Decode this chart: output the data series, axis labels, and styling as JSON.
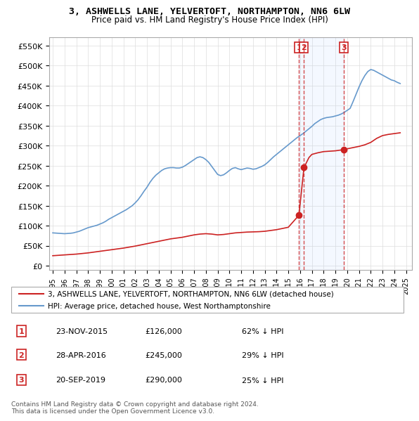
{
  "title": "3, ASHWELLS LANE, YELVERTOFT, NORTHAMPTON, NN6 6LW",
  "subtitle": "Price paid vs. HM Land Registry's House Price Index (HPI)",
  "ylabel_max": 550000,
  "yticks": [
    0,
    50000,
    100000,
    150000,
    200000,
    250000,
    300000,
    350000,
    400000,
    450000,
    500000,
    550000
  ],
  "ytick_labels": [
    "£0",
    "£50K",
    "£100K",
    "£150K",
    "£200K",
    "£250K",
    "£300K",
    "£350K",
    "£400K",
    "£450K",
    "£500K",
    "£550K"
  ],
  "xmin": 1995.0,
  "xmax": 2025.5,
  "transactions": [
    {
      "num": 1,
      "date_str": "23-NOV-2015",
      "date_x": 2015.9,
      "price": 126000,
      "label": "1"
    },
    {
      "num": 2,
      "date_str": "28-APR-2016",
      "date_x": 2016.33,
      "price": 245000,
      "label": "2"
    },
    {
      "num": 3,
      "date_str": "20-SEP-2019",
      "date_x": 2019.72,
      "price": 290000,
      "label": "3"
    }
  ],
  "hpi_color": "#6699cc",
  "price_color": "#cc2222",
  "vline_color": "#cc2222",
  "transaction_marker_color": "#cc2222",
  "background_color": "#ffffff",
  "plot_bg_color": "#ffffff",
  "grid_color": "#dddddd",
  "legend_label_price": "3, ASHWELLS LANE, YELVERTOFT, NORTHAMPTON, NN6 6LW (detached house)",
  "legend_label_hpi": "HPI: Average price, detached house, West Northamptonshire",
  "footnote": "Contains HM Land Registry data © Crown copyright and database right 2024.\nThis data is licensed under the Open Government Licence v3.0.",
  "table_rows": [
    [
      "1",
      "23-NOV-2015",
      "£126,000",
      "62% ↓ HPI"
    ],
    [
      "2",
      "28-APR-2016",
      "£245,000",
      "29% ↓ HPI"
    ],
    [
      "3",
      "20-SEP-2019",
      "£290,000",
      "25% ↓ HPI"
    ]
  ],
  "hpi_data_x": [
    1995.0,
    1995.25,
    1995.5,
    1995.75,
    1996.0,
    1996.25,
    1996.5,
    1996.75,
    1997.0,
    1997.25,
    1997.5,
    1997.75,
    1998.0,
    1998.25,
    1998.5,
    1998.75,
    1999.0,
    1999.25,
    1999.5,
    1999.75,
    2000.0,
    2000.25,
    2000.5,
    2000.75,
    2001.0,
    2001.25,
    2001.5,
    2001.75,
    2002.0,
    2002.25,
    2002.5,
    2002.75,
    2003.0,
    2003.25,
    2003.5,
    2003.75,
    2004.0,
    2004.25,
    2004.5,
    2004.75,
    2005.0,
    2005.25,
    2005.5,
    2005.75,
    2006.0,
    2006.25,
    2006.5,
    2006.75,
    2007.0,
    2007.25,
    2007.5,
    2007.75,
    2008.0,
    2008.25,
    2008.5,
    2008.75,
    2009.0,
    2009.25,
    2009.5,
    2009.75,
    2010.0,
    2010.25,
    2010.5,
    2010.75,
    2011.0,
    2011.25,
    2011.5,
    2011.75,
    2012.0,
    2012.25,
    2012.5,
    2012.75,
    2013.0,
    2013.25,
    2013.5,
    2013.75,
    2014.0,
    2014.25,
    2014.5,
    2014.75,
    2015.0,
    2015.25,
    2015.5,
    2015.75,
    2016.0,
    2016.25,
    2016.5,
    2016.75,
    2017.0,
    2017.25,
    2017.5,
    2017.75,
    2018.0,
    2018.25,
    2018.5,
    2018.75,
    2019.0,
    2019.25,
    2019.5,
    2019.75,
    2020.0,
    2020.25,
    2020.5,
    2020.75,
    2021.0,
    2021.25,
    2021.5,
    2021.75,
    2022.0,
    2022.25,
    2022.5,
    2022.75,
    2023.0,
    2023.25,
    2023.5,
    2023.75,
    2024.0,
    2024.25,
    2024.5
  ],
  "hpi_data_y": [
    82000,
    81500,
    81000,
    80500,
    80000,
    80500,
    81000,
    82000,
    84000,
    86000,
    89000,
    92000,
    95000,
    97000,
    99000,
    101000,
    104000,
    107000,
    111000,
    116000,
    120000,
    124000,
    128000,
    132000,
    136000,
    140000,
    145000,
    150000,
    157000,
    165000,
    175000,
    186000,
    196000,
    208000,
    218000,
    226000,
    232000,
    238000,
    242000,
    244000,
    245000,
    245000,
    244000,
    244000,
    246000,
    250000,
    255000,
    260000,
    265000,
    270000,
    272000,
    270000,
    265000,
    258000,
    248000,
    238000,
    228000,
    225000,
    227000,
    232000,
    238000,
    243000,
    245000,
    242000,
    240000,
    242000,
    244000,
    243000,
    241000,
    242000,
    245000,
    248000,
    252000,
    258000,
    265000,
    272000,
    278000,
    284000,
    290000,
    296000,
    302000,
    308000,
    314000,
    320000,
    325000,
    330000,
    336000,
    342000,
    348000,
    355000,
    360000,
    365000,
    368000,
    370000,
    371000,
    372000,
    374000,
    376000,
    379000,
    383000,
    388000,
    393000,
    410000,
    428000,
    446000,
    462000,
    475000,
    485000,
    490000,
    488000,
    484000,
    480000,
    476000,
    472000,
    468000,
    464000,
    462000,
    458000,
    455000
  ],
  "price_data_x": [
    1995.0,
    1995.5,
    1996.0,
    1996.5,
    1997.0,
    1997.5,
    1998.0,
    1998.5,
    1999.0,
    1999.5,
    2000.0,
    2000.5,
    2001.0,
    2001.5,
    2002.0,
    2002.5,
    2003.0,
    2003.5,
    2004.0,
    2004.5,
    2005.0,
    2005.5,
    2006.0,
    2006.5,
    2007.0,
    2007.5,
    2008.0,
    2008.5,
    2009.0,
    2009.5,
    2010.0,
    2010.5,
    2011.0,
    2011.5,
    2012.0,
    2012.5,
    2013.0,
    2013.5,
    2014.0,
    2014.5,
    2015.0,
    2015.9,
    2016.33,
    2016.75,
    2017.0,
    2017.5,
    2018.0,
    2018.5,
    2019.0,
    2019.72,
    2020.0,
    2020.5,
    2021.0,
    2021.5,
    2022.0,
    2022.5,
    2023.0,
    2023.5,
    2024.0,
    2024.5
  ],
  "price_data_y": [
    25000,
    26000,
    27000,
    28000,
    29000,
    30500,
    32000,
    34000,
    36000,
    38000,
    40000,
    42000,
    44000,
    46500,
    49000,
    52000,
    55000,
    58000,
    61000,
    64000,
    67000,
    69000,
    71000,
    74000,
    77000,
    79000,
    80000,
    79000,
    77000,
    78000,
    80000,
    82000,
    83000,
    84000,
    84500,
    85000,
    86000,
    88000,
    90000,
    93000,
    96000,
    126000,
    245000,
    270000,
    278000,
    282000,
    285000,
    286000,
    287000,
    290000,
    292000,
    295000,
    298000,
    302000,
    308000,
    318000,
    325000,
    328000,
    330000,
    332000
  ]
}
